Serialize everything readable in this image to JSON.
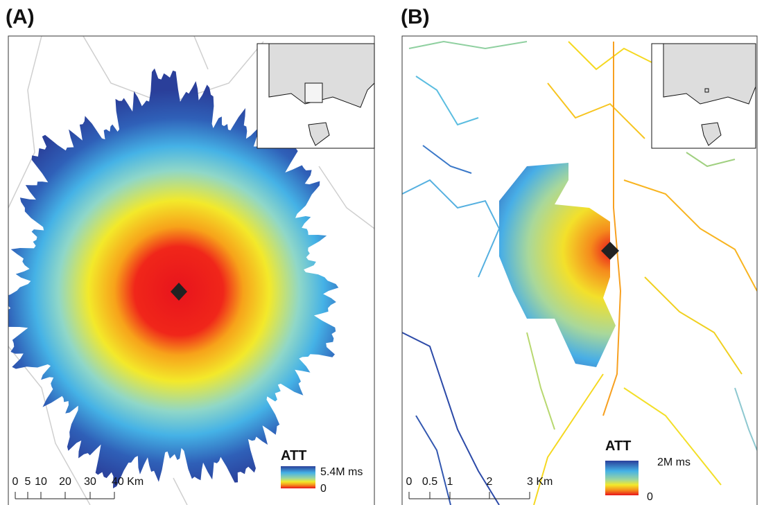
{
  "panels": [
    {
      "label": "(A)",
      "legend": {
        "title": "ATT",
        "max": "5.4M ms",
        "min": "0"
      },
      "scale": [
        "0",
        "5",
        "10",
        "20",
        "30",
        "40 Km"
      ]
    },
    {
      "label": "(B)",
      "legend": {
        "title": "ATT",
        "max": "2M ms",
        "min": "0"
      },
      "scale": [
        "0",
        "0.5",
        "1",
        "2",
        "3 Km"
      ]
    }
  ]
}
